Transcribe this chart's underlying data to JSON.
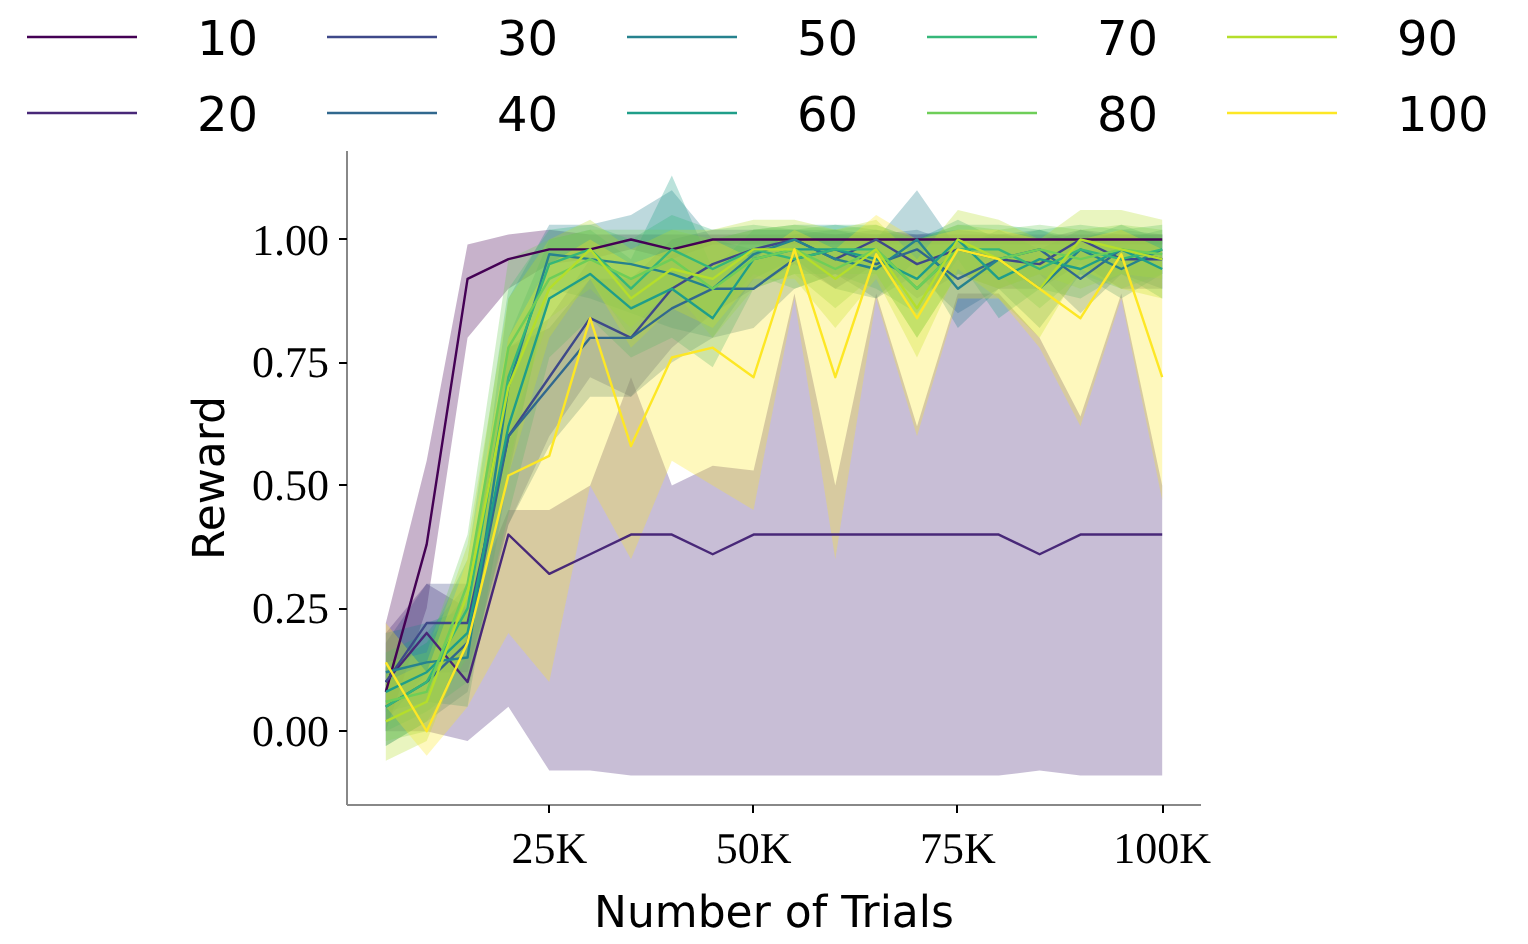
{
  "chart_data": {
    "type": "line",
    "xlabel": "Number of Trials",
    "ylabel": "Reward",
    "x": [
      5000,
      10000,
      15000,
      20000,
      25000,
      30000,
      35000,
      40000,
      45000,
      50000,
      55000,
      60000,
      65000,
      70000,
      75000,
      80000,
      85000,
      90000,
      95000,
      100000
    ],
    "xlim": [
      250,
      104750
    ],
    "ylim": [
      -0.15,
      1.18
    ],
    "xticks": [
      {
        "value": 25000,
        "label": "25K"
      },
      {
        "value": 50000,
        "label": "50K"
      },
      {
        "value": 75000,
        "label": "75K"
      },
      {
        "value": 100000,
        "label": "100K"
      }
    ],
    "yticks": [
      {
        "value": 0,
        "label": "0.00"
      },
      {
        "value": 0.25,
        "label": "0.25"
      },
      {
        "value": 0.5,
        "label": "0.50"
      },
      {
        "value": 0.75,
        "label": "0.75"
      },
      {
        "value": 1,
        "label": "1.00"
      }
    ],
    "grid": false,
    "legend": "top",
    "marker": "none",
    "line_style": "solid",
    "series": [
      {
        "name": "10",
        "color": "#440154",
        "values": [
          0.08,
          0.38,
          0.92,
          0.96,
          0.98,
          0.98,
          1.0,
          0.98,
          1.0,
          1.0,
          1.0,
          1.0,
          1.0,
          1.0,
          1.0,
          1.0,
          1.0,
          1.0,
          1.0,
          1.0
        ],
        "lower": [
          0.0,
          0.25,
          0.8,
          0.9,
          0.95,
          0.96,
          0.98,
          0.96,
          0.99,
          0.99,
          0.99,
          0.99,
          0.99,
          0.99,
          0.99,
          0.99,
          0.99,
          0.99,
          0.99,
          0.99
        ],
        "upper": [
          0.22,
          0.55,
          0.99,
          1.01,
          1.02,
          1.01,
          1.01,
          1.01,
          1.01,
          1.01,
          1.01,
          1.01,
          1.01,
          1.01,
          1.01,
          1.01,
          1.01,
          1.01,
          1.01,
          1.01
        ]
      },
      {
        "name": "20",
        "color": "#482878",
        "values": [
          0.1,
          0.2,
          0.1,
          0.4,
          0.32,
          0.36,
          0.4,
          0.4,
          0.36,
          0.4,
          0.4,
          0.4,
          0.4,
          0.4,
          0.4,
          0.4,
          0.36,
          0.4,
          0.4,
          0.4
        ],
        "lower": [
          0.0,
          0.0,
          -0.02,
          0.05,
          -0.08,
          -0.08,
          -0.09,
          -0.09,
          -0.09,
          -0.09,
          -0.09,
          -0.09,
          -0.09,
          -0.09,
          -0.09,
          -0.09,
          -0.08,
          -0.09,
          -0.09,
          -0.09
        ],
        "upper": [
          0.2,
          0.3,
          0.25,
          0.45,
          0.45,
          0.5,
          0.72,
          0.5,
          0.54,
          0.53,
          0.89,
          0.5,
          0.89,
          0.62,
          0.89,
          0.89,
          0.8,
          0.64,
          0.89,
          0.5
        ]
      },
      {
        "name": "30",
        "color": "#3e4989",
        "values": [
          0.1,
          0.22,
          0.22,
          0.6,
          0.72,
          0.84,
          0.8,
          0.9,
          0.95,
          0.98,
          1.0,
          0.96,
          1.0,
          0.95,
          0.98,
          0.96,
          0.95,
          1.0,
          0.96,
          0.96
        ],
        "lower": [
          0.02,
          0.12,
          0.12,
          0.42,
          0.6,
          0.72,
          0.68,
          0.78,
          0.85,
          0.9,
          0.95,
          0.9,
          0.95,
          0.88,
          0.93,
          0.9,
          0.9,
          0.95,
          0.9,
          0.9
        ],
        "upper": [
          0.18,
          0.3,
          0.3,
          0.78,
          0.84,
          0.96,
          0.92,
          1.0,
          1.02,
          1.02,
          1.02,
          1.01,
          1.02,
          1.01,
          1.02,
          1.01,
          1.0,
          1.02,
          1.01,
          1.01
        ]
      },
      {
        "name": "40",
        "color": "#31688e",
        "values": [
          0.05,
          0.1,
          0.18,
          0.6,
          0.7,
          0.8,
          0.8,
          0.86,
          0.9,
          0.9,
          0.96,
          0.98,
          0.95,
          0.98,
          0.92,
          0.96,
          0.98,
          0.92,
          0.98,
          0.96
        ],
        "lower": [
          -0.03,
          0.02,
          0.08,
          0.42,
          0.58,
          0.68,
          0.68,
          0.75,
          0.8,
          0.82,
          0.9,
          0.93,
          0.88,
          0.93,
          0.85,
          0.9,
          0.93,
          0.85,
          0.93,
          0.9
        ],
        "upper": [
          0.13,
          0.18,
          0.28,
          0.78,
          0.82,
          0.92,
          0.92,
          0.97,
          1.0,
          0.98,
          1.01,
          1.02,
          1.01,
          1.02,
          0.99,
          1.01,
          1.02,
          0.99,
          1.02,
          1.01
        ]
      },
      {
        "name": "50",
        "color": "#26828e",
        "values": [
          0.12,
          0.14,
          0.15,
          0.7,
          0.97,
          0.96,
          0.95,
          0.93,
          0.9,
          0.97,
          1.0,
          0.96,
          0.94,
          1.0,
          0.9,
          0.96,
          0.9,
          0.98,
          0.94,
          0.98
        ],
        "lower": [
          0.04,
          0.06,
          0.05,
          0.52,
          0.9,
          0.88,
          0.85,
          0.82,
          0.8,
          0.92,
          0.96,
          0.9,
          0.88,
          0.96,
          0.82,
          0.9,
          0.82,
          0.93,
          0.88,
          0.93
        ],
        "upper": [
          0.2,
          0.22,
          0.25,
          0.88,
          1.03,
          1.03,
          1.05,
          1.1,
          1.0,
          1.02,
          1.02,
          1.02,
          1.0,
          1.1,
          0.98,
          1.02,
          0.98,
          1.02,
          1.0,
          1.02
        ]
      },
      {
        "name": "60",
        "color": "#1f9e89",
        "values": [
          0.08,
          0.12,
          0.2,
          0.62,
          0.88,
          0.93,
          0.86,
          0.9,
          0.84,
          0.96,
          0.98,
          0.98,
          0.96,
          0.92,
          1.0,
          0.92,
          0.96,
          0.94,
          0.98,
          0.94
        ],
        "lower": [
          0.0,
          0.04,
          0.1,
          0.44,
          0.76,
          0.84,
          0.76,
          0.8,
          0.74,
          0.9,
          0.93,
          0.93,
          0.9,
          0.85,
          0.96,
          0.84,
          0.9,
          0.88,
          0.93,
          0.88
        ],
        "upper": [
          0.16,
          0.2,
          0.3,
          0.8,
          1.0,
          1.02,
          0.96,
          1.13,
          0.94,
          1.02,
          1.03,
          1.03,
          1.02,
          1.0,
          1.04,
          1.0,
          1.02,
          1.0,
          1.03,
          1.0
        ]
      },
      {
        "name": "70",
        "color": "#35b779",
        "values": [
          0.05,
          0.1,
          0.25,
          0.72,
          0.95,
          0.98,
          0.9,
          0.98,
          0.94,
          0.98,
          0.96,
          0.98,
          0.98,
          0.9,
          0.98,
          0.98,
          0.94,
          0.98,
          0.96,
          0.98
        ],
        "lower": [
          -0.03,
          0.02,
          0.15,
          0.54,
          0.88,
          0.92,
          0.8,
          0.9,
          0.84,
          0.93,
          0.9,
          0.93,
          0.93,
          0.8,
          0.93,
          0.93,
          0.86,
          0.93,
          0.9,
          0.93
        ],
        "upper": [
          0.13,
          0.18,
          0.35,
          0.9,
          1.02,
          1.03,
          1.0,
          1.05,
          1.02,
          1.03,
          1.02,
          1.03,
          1.03,
          1.0,
          1.03,
          1.03,
          1.02,
          1.03,
          1.02,
          1.03
        ]
      },
      {
        "name": "80",
        "color": "#6ece58",
        "values": [
          0.06,
          0.08,
          0.3,
          0.78,
          0.92,
          0.96,
          0.92,
          0.96,
          0.9,
          0.96,
          0.98,
          0.94,
          0.98,
          0.9,
          0.98,
          0.96,
          0.98,
          0.96,
          0.98,
          0.97
        ],
        "lower": [
          -0.02,
          0.0,
          0.2,
          0.6,
          0.84,
          0.9,
          0.82,
          0.9,
          0.8,
          0.9,
          0.93,
          0.86,
          0.93,
          0.8,
          0.93,
          0.9,
          0.93,
          0.9,
          0.93,
          0.92
        ],
        "upper": [
          0.14,
          0.16,
          0.4,
          0.96,
          1.0,
          1.02,
          1.02,
          1.02,
          1.0,
          1.02,
          1.03,
          1.02,
          1.03,
          1.0,
          1.03,
          1.02,
          1.03,
          1.02,
          1.03,
          1.02
        ]
      },
      {
        "name": "90",
        "color": "#b5de2b",
        "values": [
          0.02,
          0.06,
          0.28,
          0.7,
          0.9,
          0.98,
          0.88,
          0.94,
          0.92,
          0.98,
          0.98,
          0.92,
          0.98,
          0.86,
          1.0,
          0.96,
          0.9,
          1.0,
          0.98,
          0.96
        ],
        "lower": [
          -0.06,
          -0.02,
          0.18,
          0.52,
          0.8,
          0.92,
          0.78,
          0.86,
          0.82,
          0.92,
          0.92,
          0.82,
          0.92,
          0.76,
          0.94,
          0.88,
          0.8,
          0.94,
          0.9,
          0.88
        ],
        "upper": [
          0.1,
          0.14,
          0.38,
          0.88,
          1.0,
          1.04,
          0.98,
          1.02,
          1.02,
          1.04,
          1.04,
          1.02,
          1.04,
          0.96,
          1.06,
          1.04,
          1.0,
          1.06,
          1.06,
          1.04
        ]
      },
      {
        "name": "100",
        "color": "#fde725",
        "values": [
          0.14,
          0.0,
          0.18,
          0.52,
          0.56,
          0.84,
          0.58,
          0.76,
          0.78,
          0.72,
          0.98,
          0.72,
          0.97,
          0.84,
          0.98,
          0.96,
          0.9,
          0.84,
          0.97,
          0.72
        ],
        "lower": [
          0.05,
          -0.05,
          0.05,
          0.2,
          0.1,
          0.5,
          0.35,
          0.55,
          0.5,
          0.45,
          0.88,
          0.35,
          0.88,
          0.6,
          0.88,
          0.88,
          0.78,
          0.62,
          0.88,
          0.47
        ],
        "upper": [
          0.22,
          0.12,
          0.35,
          0.8,
          0.95,
          1.0,
          0.95,
          0.98,
          1.0,
          0.96,
          1.02,
          0.98,
          1.05,
          1.0,
          1.02,
          1.02,
          1.0,
          1.0,
          1.02,
          0.98
        ]
      }
    ]
  }
}
